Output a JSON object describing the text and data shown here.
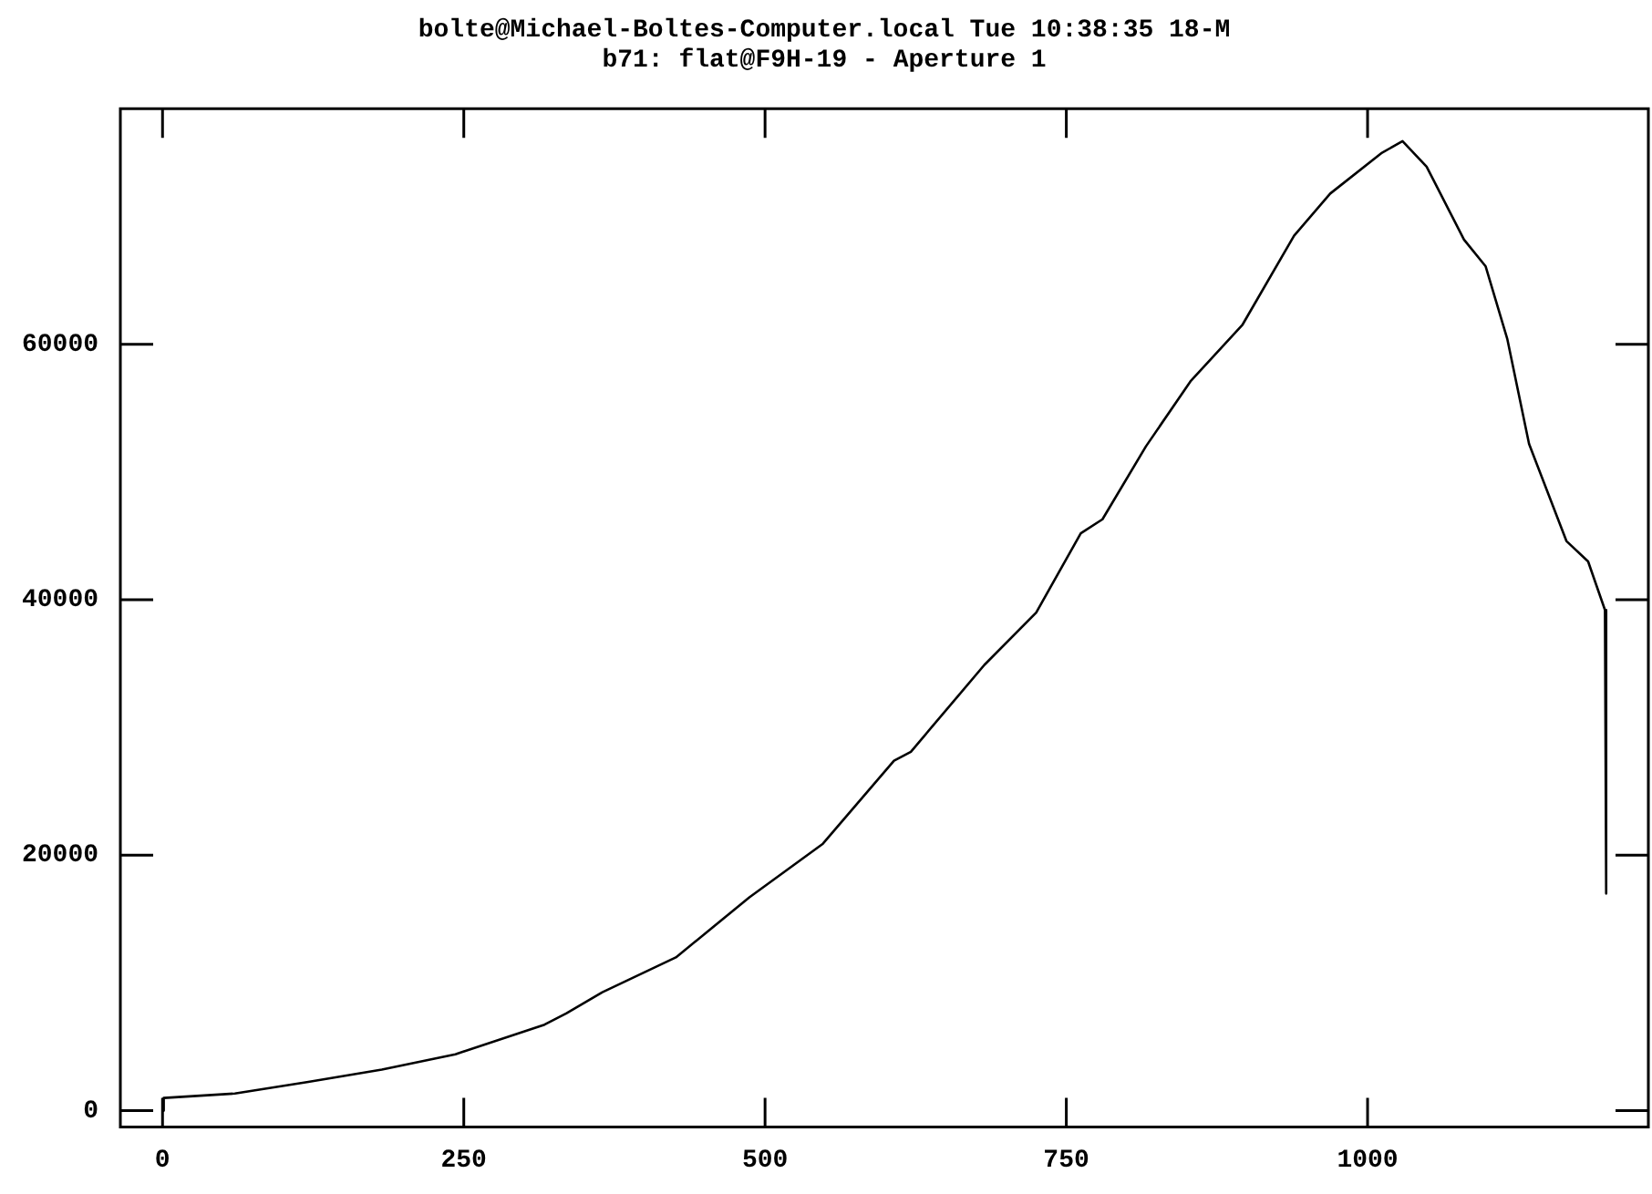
{
  "chart_data": {
    "type": "line",
    "title": "bolte@Michael-Boltes-Computer.local Tue 10:38:35 18-M",
    "subtitle": "b71: flat@F9H-19 - Aperture 1",
    "x": [
      0,
      1,
      60,
      121,
      182,
      243,
      317,
      335,
      365,
      426,
      487,
      548,
      607,
      621,
      682,
      725,
      762,
      780,
      816,
      853,
      896,
      939,
      969,
      1012,
      1029,
      1049,
      1080,
      1098,
      1116,
      1134,
      1165,
      1183,
      1197,
      1198
    ],
    "values": [
      0,
      1000,
      1340,
      2260,
      3220,
      4420,
      6740,
      7620,
      9280,
      12000,
      16700,
      20900,
      27400,
      28100,
      34900,
      39000,
      45200,
      46300,
      52000,
      57100,
      61500,
      68500,
      71800,
      75000,
      75900,
      73900,
      68200,
      66100,
      60400,
      52200,
      44600,
      43000,
      39200,
      17000
    ],
    "color": "#000000",
    "marker": "none",
    "line_style": "solid",
    "xlim": [
      -35,
      1233
    ],
    "ylim": [
      -1270,
      78450
    ],
    "xticks": [
      0,
      250,
      500,
      750,
      1000
    ],
    "yticks": [
      0,
      20000,
      40000,
      60000
    ]
  }
}
